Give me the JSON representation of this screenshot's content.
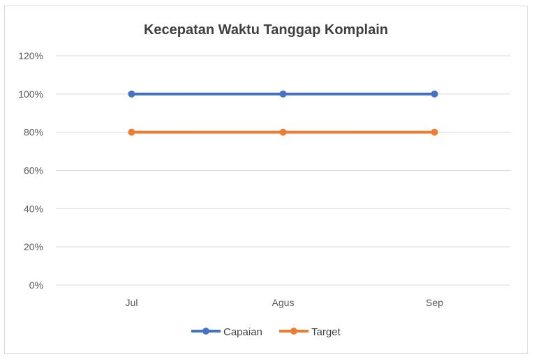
{
  "chart_data": {
    "type": "line",
    "title": "Kecepatan Waktu Tanggap Komplain",
    "categories": [
      "Jul",
      "Agus",
      "Sep"
    ],
    "y_ticks": [
      "0%",
      "20%",
      "40%",
      "60%",
      "80%",
      "100%",
      "120%"
    ],
    "ylim": [
      0,
      120
    ],
    "grid": true,
    "legend_position": "bottom",
    "series": [
      {
        "name": "Capaian",
        "values": [
          100,
          100,
          100
        ],
        "color": "#4472c4"
      },
      {
        "name": "Target",
        "values": [
          80,
          80,
          80
        ],
        "color": "#ed7d31"
      }
    ]
  }
}
